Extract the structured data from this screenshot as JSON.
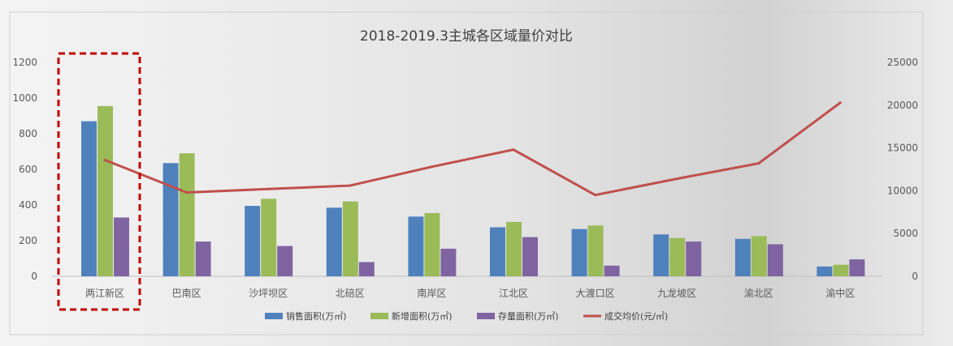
{
  "chart_data": {
    "type": "bar",
    "title": "2018-2019.3主城各区域量价对比",
    "categories": [
      "两江新区",
      "巴南区",
      "沙坪坝区",
      "北碚区",
      "南岸区",
      "江北区",
      "大渡口区",
      "九龙坡区",
      "渝北区",
      "渝中区"
    ],
    "series": [
      {
        "name": "销售面积(万㎡)",
        "type": "bar",
        "axis": "left",
        "color": "#4f81bd",
        "values": [
          870,
          635,
          395,
          385,
          335,
          275,
          265,
          235,
          210,
          55
        ]
      },
      {
        "name": "新增面积(万㎡)",
        "type": "bar",
        "axis": "left",
        "color": "#9bbb59",
        "values": [
          955,
          690,
          435,
          420,
          355,
          305,
          285,
          215,
          225,
          65
        ]
      },
      {
        "name": "存量面积(万㎡)",
        "type": "bar",
        "axis": "left",
        "color": "#8064a2",
        "values": [
          330,
          195,
          170,
          80,
          155,
          220,
          60,
          195,
          180,
          95
        ]
      },
      {
        "name": "成交均价(元/㎡)",
        "type": "line",
        "axis": "right",
        "color": "#c0504d",
        "values": [
          13600,
          9800,
          10200,
          10600,
          12800,
          14800,
          9500,
          11400,
          13200,
          20300
        ]
      }
    ],
    "y_left": {
      "ylim": [
        0,
        1200
      ],
      "ticks": [
        "0",
        "200",
        "400",
        "600",
        "800",
        "1000",
        "1200"
      ]
    },
    "y_right": {
      "ylim": [
        0,
        25000
      ],
      "ticks": [
        "0",
        "5000",
        "10000",
        "15000",
        "20000",
        "25000"
      ]
    },
    "highlight_category": "两江新区",
    "highlight_color": "#c00000",
    "legend_position": "bottom",
    "grid": false
  }
}
